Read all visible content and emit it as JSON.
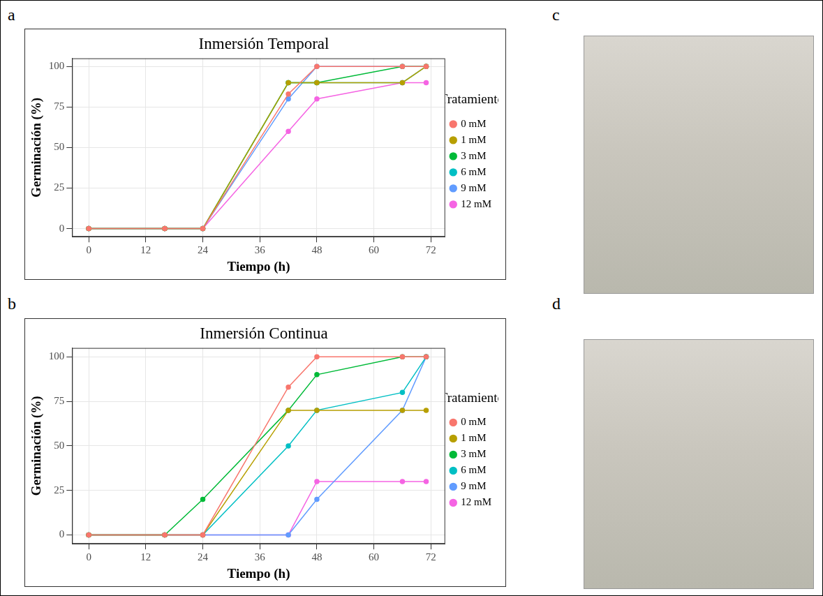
{
  "chart_data": [
    {
      "panel": "a",
      "type": "line",
      "title": "Inmersión Temporal",
      "x_label": "Tiempo (h)",
      "y_label": "Germinación (%)",
      "legend_title": "Tratamiento",
      "x": [
        0,
        16,
        24,
        42,
        48,
        66,
        71
      ],
      "series": [
        {
          "name": "0 mM",
          "color": "#F8766D",
          "values": [
            0,
            0,
            0,
            83,
            100,
            100,
            100
          ]
        },
        {
          "name": "1 mM",
          "color": "#B79F00",
          "values": [
            0,
            0,
            0,
            90,
            90,
            90,
            100
          ]
        },
        {
          "name": "3 mM",
          "color": "#00BA38",
          "values": [
            0,
            0,
            0,
            90,
            90,
            100,
            100
          ]
        },
        {
          "name": "6 mM",
          "color": "#00BFC4",
          "values": [
            0,
            0,
            0,
            90,
            90,
            90,
            100
          ]
        },
        {
          "name": "9 mM",
          "color": "#619CFF",
          "values": [
            0,
            0,
            0,
            80,
            100,
            100,
            100
          ]
        },
        {
          "name": "12 mM",
          "color": "#F564E3",
          "values": [
            0,
            0,
            0,
            60,
            80,
            90,
            90
          ]
        }
      ],
      "xlim": [
        -3.5,
        75
      ],
      "xticks": [
        0,
        12,
        24,
        36,
        48,
        60,
        72
      ],
      "ylim": [
        -5,
        105
      ],
      "yticks": [
        0,
        25,
        50,
        75,
        100
      ],
      "grid": true,
      "legend": "right",
      "marker": "circle"
    },
    {
      "panel": "b",
      "type": "line",
      "title": "Inmersión Continua",
      "x_label": "Tiempo (h)",
      "y_label": "Germinación (%)",
      "legend_title": "Tratamiento",
      "x": [
        0,
        16,
        24,
        42,
        48,
        66,
        71
      ],
      "series": [
        {
          "name": "0 mM",
          "color": "#F8766D",
          "values": [
            0,
            0,
            0,
            83,
            100,
            100,
            100
          ]
        },
        {
          "name": "1 mM",
          "color": "#B79F00",
          "values": [
            0,
            0,
            0,
            70,
            70,
            70,
            70
          ]
        },
        {
          "name": "3 mM",
          "color": "#00BA38",
          "values": [
            0,
            0,
            20,
            70,
            90,
            100,
            100
          ]
        },
        {
          "name": "6 mM",
          "color": "#00BFC4",
          "values": [
            0,
            0,
            0,
            50,
            70,
            80,
            100
          ]
        },
        {
          "name": "9 mM",
          "color": "#619CFF",
          "values": [
            0,
            0,
            0,
            0,
            20,
            70,
            100
          ]
        },
        {
          "name": "12 mM",
          "color": "#F564E3",
          "values": [
            0,
            0,
            0,
            0,
            30,
            30,
            30
          ]
        }
      ],
      "xlim": [
        -3.5,
        75
      ],
      "xticks": [
        0,
        12,
        24,
        36,
        48,
        60,
        72
      ],
      "ylim": [
        -5,
        105
      ],
      "yticks": [
        0,
        25,
        50,
        75,
        100
      ],
      "grid": true,
      "legend": "right",
      "marker": "circle"
    }
  ],
  "photos": [
    {
      "panel": "c"
    },
    {
      "panel": "d"
    }
  ]
}
